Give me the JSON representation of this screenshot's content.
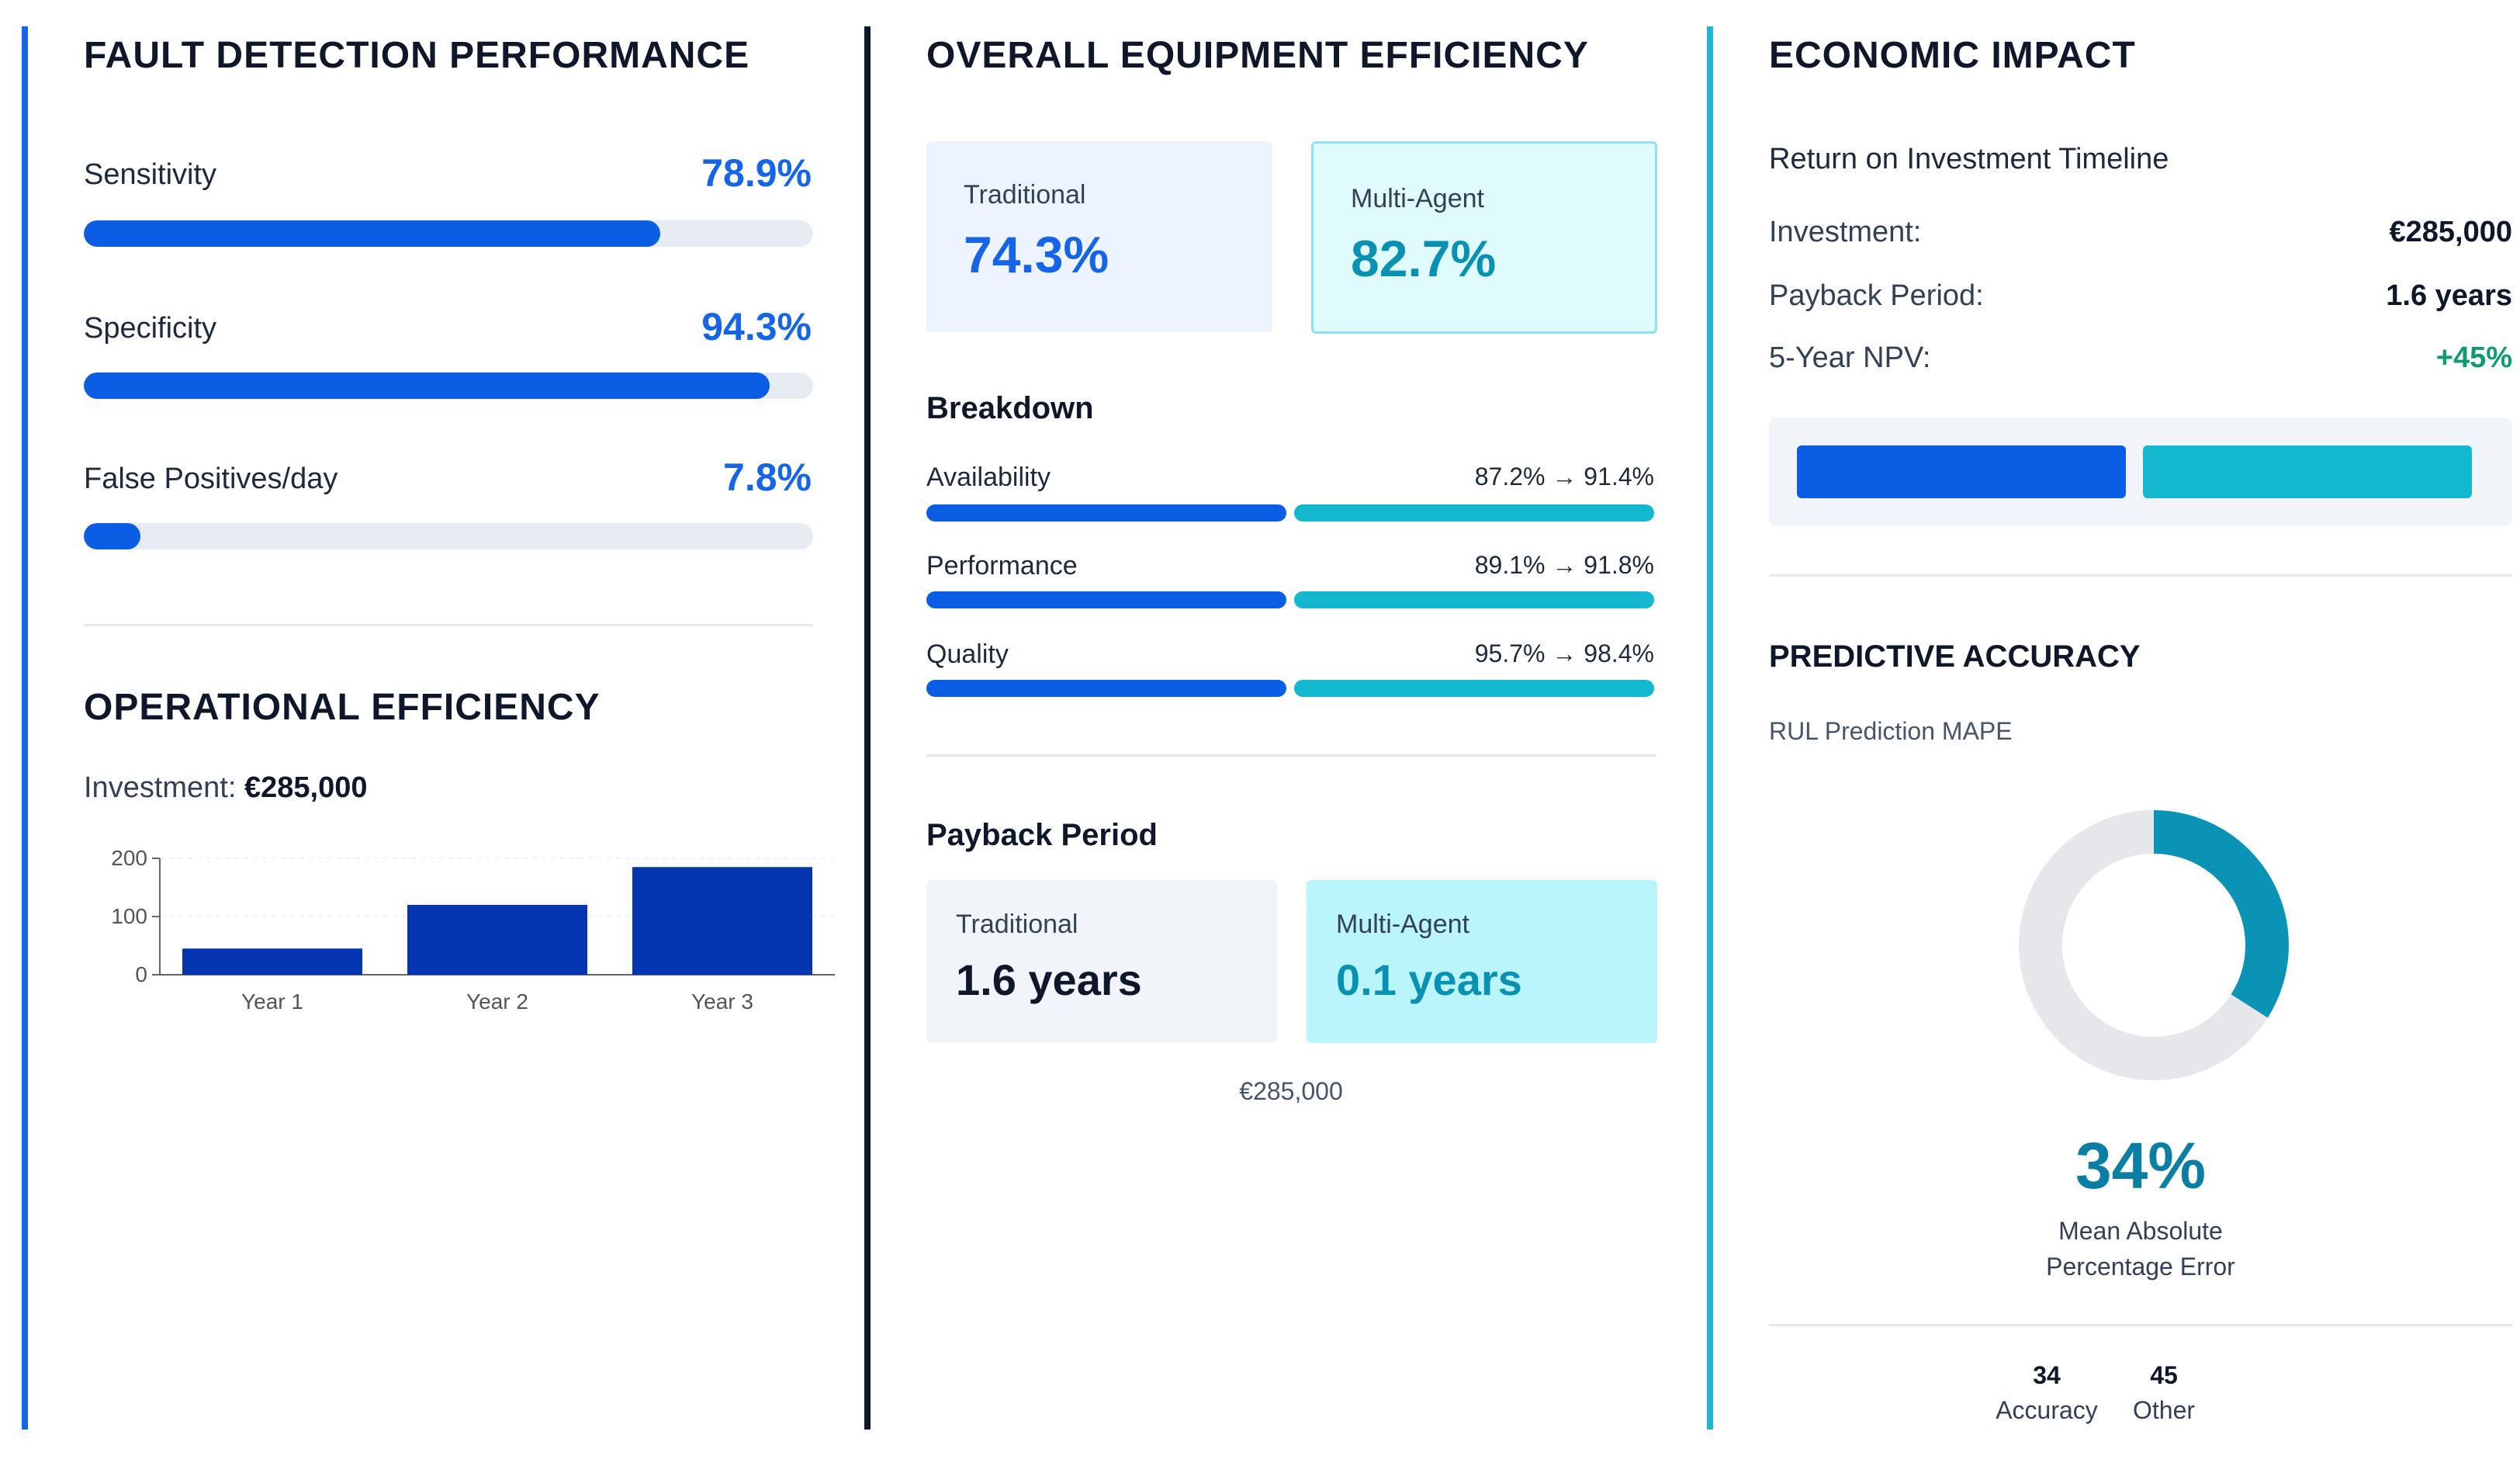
{
  "fault_detection": {
    "title": "FAULT DETECTION PERFORMANCE",
    "metrics": [
      {
        "label": "Sensitivity",
        "value": "78.9%",
        "fill_percent": 79
      },
      {
        "label": "Specificity",
        "value": "94.3%",
        "fill_percent": 94
      },
      {
        "label": "False Positives/day",
        "value": "7.8%",
        "fill_percent": 7.8
      }
    ]
  },
  "operational_efficiency": {
    "title": "OPERATIONAL EFFICIENCY",
    "investment_label": "Investment:",
    "investment_value": "€285,000"
  },
  "chart_data": {
    "type": "bar",
    "categories": [
      "Year 1",
      "Year 2",
      "Year 3"
    ],
    "values": [
      45,
      120,
      185
    ],
    "yticks": [
      0,
      100,
      200
    ],
    "ylim": [
      0,
      200
    ],
    "bar_color": "#0535b0",
    "title": "",
    "xlabel": "",
    "ylabel": ""
  },
  "oee": {
    "title": "OVERALL EQUIPMENT EFFICIENCY",
    "traditional_label": "Traditional",
    "traditional_value": "74.3%",
    "multi_agent_label": "Multi-Agent",
    "multi_agent_value": "82.7%",
    "breakdown_title": "Breakdown",
    "breakdown": [
      {
        "label": "Availability",
        "values": "87.2% → 91.4%"
      },
      {
        "label": "Performance",
        "values": "89.1% → 91.8%"
      },
      {
        "label": "Quality",
        "values": "95.7% → 98.4%"
      }
    ],
    "payback_title": "Payback Period",
    "payback_traditional_label": "Traditional",
    "payback_traditional_value": "1.6 years",
    "payback_multi_label": "Multi-Agent",
    "payback_multi_value": "0.1 years",
    "payback_footer": "€285,000"
  },
  "economic": {
    "title": "ECONOMIC IMPACT",
    "subtitle": "Return on Investment Timeline",
    "rows": [
      {
        "key": "Investment:",
        "value": "€285,000"
      },
      {
        "key": "Payback Period:",
        "value": "1.6 years"
      },
      {
        "key": "5-Year NPV:",
        "value": "+45%"
      }
    ],
    "npv_color": "#0f9b6e"
  },
  "predictive": {
    "title": "PREDICTIVE ACCURACY",
    "subtitle": "RUL Prediction MAPE",
    "percent_value": 34,
    "percent_text": "34%",
    "caption_line1": "Mean Absolute",
    "caption_line2": "Percentage Error",
    "legend": [
      {
        "value": "34",
        "label": "Accuracy"
      },
      {
        "value": "45",
        "label": "Other"
      }
    ],
    "donut_color": "#0b93b5",
    "donut_track": "#e5e7eb"
  }
}
